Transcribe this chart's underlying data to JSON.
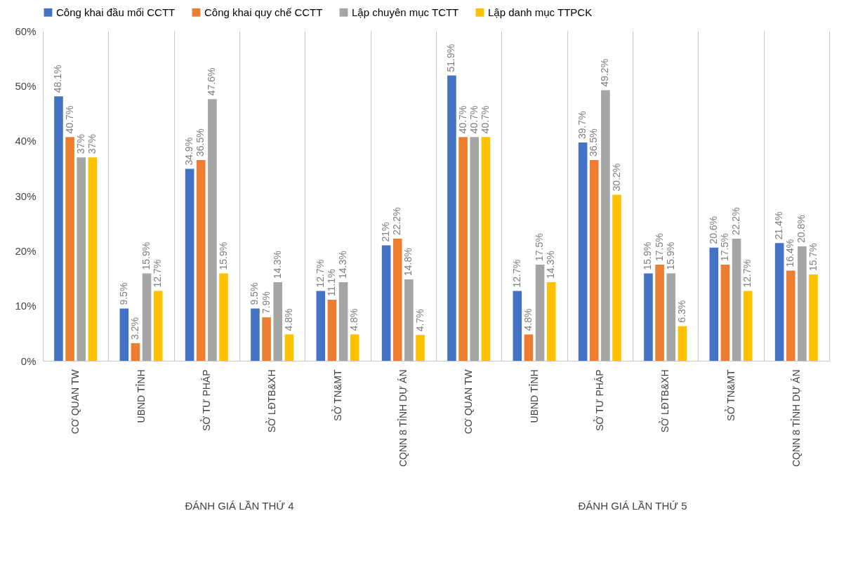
{
  "chart_data": {
    "type": "bar",
    "categories": [
      "CƠ QUAN TW",
      "UBND TỈNH",
      "SỞ TƯ PHÁP",
      "SỞ LĐTB&XH",
      "SỞ TN&MT",
      "CQNN 8 TỈNH DỰ ÁN",
      "CƠ QUAN TW",
      "UBND TỈNH",
      "SỞ TƯ PHÁP",
      "SỞ LĐTB&XH",
      "SỞ TN&MT",
      "CQNN 8 TỈNH DỰ ÁN"
    ],
    "series": [
      {
        "name": "Công khai đầu mối CCTT",
        "color": "#4472c4",
        "values": [
          48.1,
          9.5,
          34.9,
          9.5,
          12.7,
          21,
          51.9,
          12.7,
          39.7,
          15.9,
          20.6,
          21.4
        ],
        "value_labels": [
          "48.1%",
          "9.5%",
          "34.9%",
          "9.5%",
          "12.7%",
          "21%",
          "51.9%",
          "12.7%",
          "39.7%",
          "15.9%",
          "20.6%",
          "21.4%"
        ]
      },
      {
        "name": "Công khai quy chế CCTT",
        "color": "#ed7d31",
        "values": [
          40.7,
          3.2,
          36.5,
          7.9,
          11.1,
          22.2,
          40.7,
          4.8,
          36.5,
          17.5,
          17.5,
          16.4
        ],
        "value_labels": [
          "40.7%",
          "3.2%",
          "36.5%",
          "7.9%",
          "11.1%",
          "22.2%",
          "40.7%",
          "4.8%",
          "36.5%",
          "17.5%",
          "17.5%",
          "16.4%"
        ]
      },
      {
        "name": "Lập chuyên mục TCTT",
        "color": "#a5a5a5",
        "values": [
          37,
          15.9,
          47.6,
          14.3,
          14.3,
          14.8,
          40.7,
          17.5,
          49.2,
          15.9,
          22.2,
          20.8
        ],
        "value_labels": [
          "37%",
          "15.9%",
          "47.6%",
          "14.3%",
          "14.3%",
          "14.8%",
          "40.7%",
          "17.5%",
          "49.2%",
          "15.9%",
          "22.2%",
          "20.8%"
        ]
      },
      {
        "name": "Lập danh mục TTPCK",
        "color": "#ffc000",
        "values": [
          37,
          12.7,
          15.9,
          4.8,
          4.8,
          4.7,
          40.7,
          14.3,
          30.2,
          6.3,
          12.7,
          15.7
        ],
        "value_labels": [
          "37%",
          "12.7%",
          "15.9%",
          "4.8%",
          "4.8%",
          "4.7%",
          "40.7%",
          "14.3%",
          "30.2%",
          "6.3%",
          "12.7%",
          "15.7%"
        ]
      }
    ],
    "ylim": [
      0,
      60
    ],
    "yticks": [
      {
        "value": 0,
        "label": "0%"
      },
      {
        "value": 10,
        "label": "10%"
      },
      {
        "value": 20,
        "label": "20%"
      },
      {
        "value": 30,
        "label": "30%"
      },
      {
        "value": 40,
        "label": "40%"
      },
      {
        "value": 50,
        "label": "50%"
      },
      {
        "value": 60,
        "label": "60%"
      }
    ],
    "grid": "x",
    "legend": "top",
    "annotations": [
      "ĐÁNH GIÁ LẦN THỨ 4",
      "ĐÁNH GIÁ LẦN THỨ 5"
    ]
  }
}
